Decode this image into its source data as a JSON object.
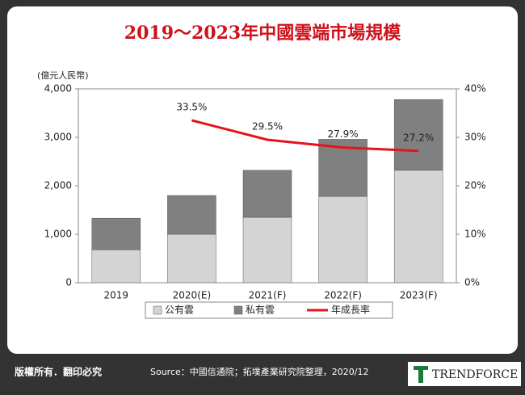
{
  "chart_data": {
    "type": "bar",
    "stacked": true,
    "title": "2019～2023年中國雲端市場規模",
    "y_label": "(億元人民幣)",
    "categories": [
      "2019",
      "2020(E)",
      "2021(F)",
      "2022(F)",
      "2023(F)"
    ],
    "series": [
      {
        "name": "公有雲",
        "color": "#d4d4d4",
        "values": [
          680,
          1000,
          1350,
          1780,
          2320
        ]
      },
      {
        "name": "私有雲",
        "color": "#808080",
        "values": [
          650,
          800,
          970,
          1180,
          1460
        ]
      },
      {
        "name": "年成長率",
        "type": "line",
        "axis": "y2",
        "color": "#e3141c",
        "values": [
          null,
          33.5,
          29.5,
          27.9,
          27.2
        ],
        "value_labels": [
          null,
          "33.5%",
          "29.5%",
          "27.9%",
          "27.2%"
        ]
      }
    ],
    "ylim": [
      0,
      4000
    ],
    "yticks": [
      0,
      {
        "value": 1000,
        "label": "1,000"
      },
      {
        "value": 2000,
        "label": "2,000"
      },
      {
        "value": 3000,
        "label": "3,000"
      },
      {
        "value": 4000,
        "label": "4,000"
      }
    ],
    "y2lim": [
      0,
      40
    ],
    "y2ticks": [
      {
        "value": 0,
        "label": "0%"
      },
      {
        "value": 10,
        "label": "10%"
      },
      {
        "value": 20,
        "label": "20%"
      },
      {
        "value": 30,
        "label": "30%"
      },
      {
        "value": 40,
        "label": "40%"
      }
    ]
  },
  "footer": {
    "copyright": "版權所有．翻印必究",
    "source": "Source：中國信通院；拓墣產業研究院整理，2020/12",
    "logo": "TRENDFORCE"
  }
}
